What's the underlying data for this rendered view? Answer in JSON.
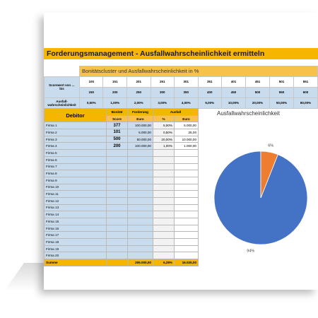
{
  "title": "Forderungsmanagement - Ausfallwahrscheinlichkeit ermitteln",
  "cluster": {
    "header": "Bonitätscluster und Ausfallwahrscheinlichkeit in %",
    "row1_label_a": "Scorewert von …",
    "row1_label_b": "bis",
    "from": [
      "100",
      "151",
      "201",
      "251",
      "301",
      "351",
      "401",
      "451",
      "501",
      "551"
    ],
    "to": [
      "150",
      "200",
      "250",
      "300",
      "350",
      "400",
      "450",
      "500",
      "550",
      "600"
    ],
    "row2_label_a": "Ausfall-",
    "row2_label_b": "wahrscheinlichkeit",
    "prob": [
      "0,50%",
      "1,00%",
      "2,00%",
      "3,00%",
      "4,00%",
      "5,00%",
      "10,00%",
      "20,00%",
      "50,00%",
      "80,00%"
    ]
  },
  "debtor": {
    "h_debitor": "Debitor",
    "h_bonitaet": "Bonität",
    "h_forderung": "Forderung",
    "h_ausfall": "Ausfall",
    "sub_score": "Score",
    "sub_euro": "Euro",
    "sub_pct": "%",
    "sub_euro2": "Euro",
    "rows": [
      {
        "name": "Firma 1",
        "score": "377",
        "ford": "100.000,00",
        "pct": "5,00%",
        "eur": "5.000,00"
      },
      {
        "name": "Firma 2",
        "score": "101",
        "ford": "5.000,00",
        "pct": "0,50%",
        "eur": "25,00"
      },
      {
        "name": "Firma 3",
        "score": "500",
        "ford": "50.000,00",
        "pct": "20,00%",
        "eur": "10.000,00"
      },
      {
        "name": "Firma 4",
        "score": "200",
        "ford": "100.000,00",
        "pct": "1,00%",
        "eur": "1.000,00"
      },
      {
        "name": "Firma 5",
        "score": "",
        "ford": "",
        "pct": "",
        "eur": ""
      },
      {
        "name": "Firma 6",
        "score": "",
        "ford": "",
        "pct": "",
        "eur": ""
      },
      {
        "name": "Firma 7",
        "score": "",
        "ford": "",
        "pct": "",
        "eur": ""
      },
      {
        "name": "Firma 8",
        "score": "",
        "ford": "",
        "pct": "",
        "eur": ""
      },
      {
        "name": "Firma 9",
        "score": "",
        "ford": "",
        "pct": "",
        "eur": ""
      },
      {
        "name": "Firma 10",
        "score": "",
        "ford": "",
        "pct": "",
        "eur": ""
      },
      {
        "name": "Firma 11",
        "score": "",
        "ford": "",
        "pct": "",
        "eur": ""
      },
      {
        "name": "Firma 12",
        "score": "",
        "ford": "",
        "pct": "",
        "eur": ""
      },
      {
        "name": "Firma 13",
        "score": "",
        "ford": "",
        "pct": "",
        "eur": ""
      },
      {
        "name": "Firma 14",
        "score": "",
        "ford": "",
        "pct": "",
        "eur": ""
      },
      {
        "name": "Firma 15",
        "score": "",
        "ford": "",
        "pct": "",
        "eur": ""
      },
      {
        "name": "Firma 16",
        "score": "",
        "ford": "",
        "pct": "",
        "eur": ""
      },
      {
        "name": "Firma 17",
        "score": "",
        "ford": "",
        "pct": "",
        "eur": ""
      },
      {
        "name": "Firma 18",
        "score": "",
        "ford": "",
        "pct": "",
        "eur": ""
      },
      {
        "name": "Firma 19",
        "score": "",
        "ford": "",
        "pct": "",
        "eur": ""
      },
      {
        "name": "Firma 20",
        "score": "",
        "ford": "",
        "pct": "",
        "eur": ""
      }
    ],
    "sum_label": "Summe",
    "sum_ford": "255.000,00",
    "sum_pct": "6,28%",
    "sum_eur": "16.025,00"
  },
  "chart_data": {
    "type": "pie",
    "title": "Ausfallwahrscheinlichkeit",
    "slices": [
      {
        "label": "94%",
        "value": 94,
        "color": "#4472c4"
      },
      {
        "label": "6%",
        "value": 6,
        "color": "#ed7d31"
      }
    ]
  }
}
